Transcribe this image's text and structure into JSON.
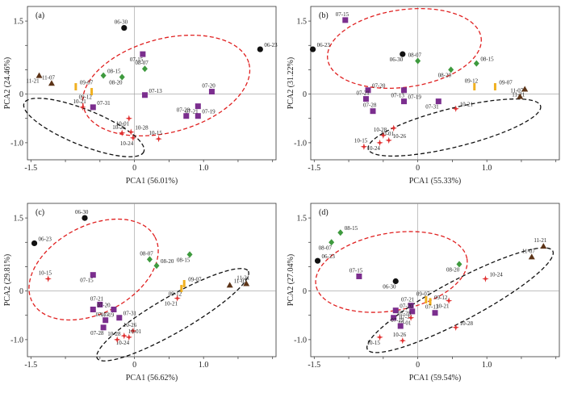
{
  "chart_data": [
    {
      "type": "scatter",
      "panel_label": "(a)",
      "xlabel": "PCA1 (56.01%)",
      "ylabel": "PCA2 (24.46%)",
      "xlim": [
        -1.55,
        2.05
      ],
      "ylim": [
        -1.35,
        1.8
      ],
      "xticks": [
        -1.5,
        -1.0,
        -0.5,
        0,
        0.5,
        1.0,
        1.5,
        2.0
      ],
      "xtick_labels": [
        "-1.5",
        "",
        "",
        "0",
        "",
        "1.0",
        "",
        ""
      ],
      "yticks": [
        -1.0,
        -0.5,
        0,
        0.5,
        1.0,
        1.5
      ],
      "ytick_labels": [
        "-1.0",
        "",
        "0",
        "",
        "",
        "1.5"
      ],
      "points": [
        {
          "label": "06-30",
          "x": -0.15,
          "y": 1.36,
          "marker": "circle",
          "color": "#111111"
        },
        {
          "label": "06-23",
          "x": 1.82,
          "y": 0.92,
          "marker": "circle",
          "color": "#111111"
        },
        {
          "label": "07-15",
          "x": 0.12,
          "y": 0.82,
          "marker": "square",
          "color": "#7b2e8e"
        },
        {
          "label": "08-07",
          "x": 0.15,
          "y": 0.52,
          "marker": "diamond",
          "color": "#3e9a3e"
        },
        {
          "label": "08-15",
          "x": -0.45,
          "y": 0.38,
          "marker": "diamond",
          "color": "#3e9a3e"
        },
        {
          "label": "08-20",
          "x": -0.18,
          "y": 0.35,
          "marker": "diamond",
          "color": "#3e9a3e"
        },
        {
          "label": "07-20",
          "x": 1.12,
          "y": 0.05,
          "marker": "square",
          "color": "#7b2e8e"
        },
        {
          "label": "07-13",
          "x": 0.15,
          "y": -0.02,
          "marker": "square",
          "color": "#7b2e8e"
        },
        {
          "label": "07-21",
          "x": 0.92,
          "y": -0.25,
          "marker": "square",
          "color": "#7b2e8e"
        },
        {
          "label": "07-28",
          "x": 0.75,
          "y": -0.45,
          "marker": "square",
          "color": "#7b2e8e"
        },
        {
          "label": "07-19",
          "x": 0.92,
          "y": -0.45,
          "marker": "square",
          "color": "#7b2e8e"
        },
        {
          "label": "11-21",
          "x": -1.38,
          "y": 0.38,
          "marker": "triangle",
          "color": "#5c3317"
        },
        {
          "label": "11-07",
          "x": -1.2,
          "y": 0.22,
          "marker": "triangle",
          "color": "#5c3317"
        },
        {
          "label": "09-07",
          "x": -0.85,
          "y": 0.15,
          "marker": "bar",
          "color": "#f0b020"
        },
        {
          "label": "09-12",
          "x": -0.62,
          "y": 0.05,
          "marker": "bar",
          "color": "#f0b020"
        },
        {
          "label": "10-21",
          "x": -0.75,
          "y": -0.27,
          "marker": "star",
          "color": "#e03030"
        },
        {
          "label": "07-31",
          "x": -0.6,
          "y": -0.27,
          "marker": "square",
          "color": "#7b2e8e"
        },
        {
          "label": "10-01",
          "x": -0.08,
          "y": -0.5,
          "marker": "star",
          "color": "#e03030"
        },
        {
          "label": "10-26",
          "x": -0.18,
          "y": -0.8,
          "marker": "star",
          "color": "#e03030"
        },
        {
          "label": "10-28",
          "x": -0.05,
          "y": -0.78,
          "marker": "star",
          "color": "#e03030"
        },
        {
          "label": "10-24",
          "x": -0.02,
          "y": -0.9,
          "marker": "star",
          "color": "#e03030"
        },
        {
          "label": "10-15",
          "x": 0.35,
          "y": -0.92,
          "marker": "star",
          "color": "#e03030"
        }
      ]
    },
    {
      "type": "scatter",
      "panel_label": "(b)",
      "xlabel": "PCA1 (55.33%)",
      "ylabel": "PCA2 (31.22%)",
      "xlim": [
        -1.55,
        2.05
      ],
      "ylim": [
        -1.35,
        1.8
      ],
      "xticks": [
        -1.5,
        -1.0,
        -0.5,
        0,
        0.5,
        1.0,
        1.5,
        2.0
      ],
      "xtick_labels": [
        "-1.5",
        "",
        "",
        "0",
        "",
        "1.0",
        "",
        ""
      ],
      "yticks": [
        -1.0,
        -0.5,
        0,
        0.5,
        1.0,
        1.5
      ],
      "ytick_labels": [
        "-1.0",
        "",
        "0",
        "",
        "",
        "1.5"
      ],
      "points": [
        {
          "label": "07-15",
          "x": -1.05,
          "y": 1.52,
          "marker": "square",
          "color": "#7b2e8e"
        },
        {
          "label": "06-23",
          "x": -1.52,
          "y": 0.92,
          "marker": "circle",
          "color": "#111111"
        },
        {
          "label": "06-30",
          "x": -0.22,
          "y": 0.82,
          "marker": "circle",
          "color": "#111111"
        },
        {
          "label": "08-07",
          "x": 0.0,
          "y": 0.68,
          "marker": "diamond",
          "color": "#3e9a3e"
        },
        {
          "label": "08-15",
          "x": 0.85,
          "y": 0.63,
          "marker": "diamond",
          "color": "#3e9a3e"
        },
        {
          "label": "08-20",
          "x": 0.48,
          "y": 0.5,
          "marker": "diamond",
          "color": "#3e9a3e"
        },
        {
          "label": "09-12",
          "x": 0.82,
          "y": 0.15,
          "marker": "bar",
          "color": "#f0b020"
        },
        {
          "label": "09-07",
          "x": 1.12,
          "y": 0.15,
          "marker": "bar",
          "color": "#f0b020"
        },
        {
          "label": "11-21",
          "x": 1.55,
          "y": 0.1,
          "marker": "triangle",
          "color": "#5c3317"
        },
        {
          "label": "11-07",
          "x": 1.48,
          "y": -0.05,
          "marker": "triangle",
          "color": "#5c3317"
        },
        {
          "label": "07-20",
          "x": -0.72,
          "y": 0.08,
          "marker": "square",
          "color": "#7b2e8e"
        },
        {
          "label": "07-13",
          "x": -0.2,
          "y": 0.08,
          "marker": "square",
          "color": "#7b2e8e"
        },
        {
          "label": "07-21",
          "x": -0.75,
          "y": -0.1,
          "marker": "square",
          "color": "#7b2e8e"
        },
        {
          "label": "07-19",
          "x": -0.2,
          "y": -0.15,
          "marker": "square",
          "color": "#7b2e8e"
        },
        {
          "label": "07-31",
          "x": 0.3,
          "y": -0.15,
          "marker": "square",
          "color": "#7b2e8e"
        },
        {
          "label": "07-28",
          "x": -0.65,
          "y": -0.35,
          "marker": "square",
          "color": "#7b2e8e"
        },
        {
          "label": "10-21",
          "x": 0.55,
          "y": -0.3,
          "marker": "star",
          "color": "#e03030"
        },
        {
          "label": "10-01",
          "x": -0.35,
          "y": -0.7,
          "marker": "star",
          "color": "#e03030"
        },
        {
          "label": "10-28",
          "x": -0.5,
          "y": -0.85,
          "marker": "star",
          "color": "#e03030"
        },
        {
          "label": "10-26",
          "x": -0.42,
          "y": -0.95,
          "marker": "star",
          "color": "#e03030"
        },
        {
          "label": "10-24",
          "x": -0.55,
          "y": -1.0,
          "marker": "star",
          "color": "#e03030"
        },
        {
          "label": "10-15",
          "x": -0.78,
          "y": -1.08,
          "marker": "star",
          "color": "#e03030"
        }
      ]
    },
    {
      "type": "scatter",
      "panel_label": "(c)",
      "xlabel": "PCA1 (56.62%)",
      "ylabel": "PCA2 (29.81%)",
      "xlim": [
        -1.55,
        2.05
      ],
      "ylim": [
        -1.35,
        1.8
      ],
      "xticks": [
        -1.5,
        -1.0,
        -0.5,
        0,
        0.5,
        1.0,
        1.5,
        2.0
      ],
      "xtick_labels": [
        "-1.5",
        "",
        "",
        "0",
        "",
        "1.0",
        "",
        ""
      ],
      "yticks": [
        -1.0,
        -0.5,
        0,
        0.5,
        1.0,
        1.5
      ],
      "ytick_labels": [
        "-1.0",
        "",
        "0",
        "",
        "",
        "1.5"
      ],
      "points": [
        {
          "label": "06-30",
          "x": -0.72,
          "y": 1.5,
          "marker": "circle",
          "color": "#111111"
        },
        {
          "label": "06-23",
          "x": -1.45,
          "y": 0.98,
          "marker": "circle",
          "color": "#111111"
        },
        {
          "label": "08-15",
          "x": 0.8,
          "y": 0.75,
          "marker": "diamond",
          "color": "#3e9a3e"
        },
        {
          "label": "08-07",
          "x": 0.22,
          "y": 0.65,
          "marker": "diamond",
          "color": "#3e9a3e"
        },
        {
          "label": "08-20",
          "x": 0.32,
          "y": 0.52,
          "marker": "diamond",
          "color": "#3e9a3e"
        },
        {
          "label": "07-15",
          "x": -0.6,
          "y": 0.33,
          "marker": "square",
          "color": "#7b2e8e"
        },
        {
          "label": "10-15",
          "x": -1.25,
          "y": 0.25,
          "marker": "star",
          "color": "#e03030"
        },
        {
          "label": "09-07",
          "x": 0.72,
          "y": 0.15,
          "marker": "bar",
          "color": "#f0b020"
        },
        {
          "label": "09-12",
          "x": 0.68,
          "y": 0.05,
          "marker": "bar",
          "color": "#f0b020"
        },
        {
          "label": "11-21",
          "x": 1.62,
          "y": 0.15,
          "marker": "triangle",
          "color": "#5c3317"
        },
        {
          "label": "11-07",
          "x": 1.38,
          "y": 0.12,
          "marker": "triangle",
          "color": "#5c3317"
        },
        {
          "label": "10-21",
          "x": 0.62,
          "y": -0.15,
          "marker": "star",
          "color": "#e03030"
        },
        {
          "label": "07-21",
          "x": -0.5,
          "y": -0.28,
          "marker": "square",
          "color": "#7b2e8e"
        },
        {
          "label": "07-20",
          "x": -0.6,
          "y": -0.38,
          "marker": "square",
          "color": "#7b2e8e"
        },
        {
          "label": "07-19",
          "x": -0.3,
          "y": -0.38,
          "marker": "square",
          "color": "#7b2e8e"
        },
        {
          "label": "07-13",
          "x": -0.42,
          "y": -0.6,
          "marker": "square",
          "color": "#7b2e8e"
        },
        {
          "label": "07-31",
          "x": -0.22,
          "y": -0.55,
          "marker": "square",
          "color": "#7b2e8e"
        },
        {
          "label": "07-28",
          "x": -0.45,
          "y": -0.75,
          "marker": "square",
          "color": "#7b2e8e"
        },
        {
          "label": "10-26",
          "x": -0.02,
          "y": -0.82,
          "marker": "star",
          "color": "#e03030"
        },
        {
          "label": "10-01",
          "x": -0.15,
          "y": -0.92,
          "marker": "star",
          "color": "#e03030"
        },
        {
          "label": "10-24",
          "x": -0.08,
          "y": -0.95,
          "marker": "star",
          "color": "#e03030"
        },
        {
          "label": "10-28",
          "x": -0.25,
          "y": -1.0,
          "marker": "star",
          "color": "#e03030"
        }
      ]
    },
    {
      "type": "scatter",
      "panel_label": "(d)",
      "xlabel": "PCA1 (59.54%)",
      "ylabel": "PCA2 (27.04%)",
      "xlim": [
        -1.55,
        2.05
      ],
      "ylim": [
        -1.35,
        1.8
      ],
      "xticks": [
        -1.5,
        -1.0,
        -0.5,
        0,
        0.5,
        1.0,
        1.5,
        2.0
      ],
      "xtick_labels": [
        "-1.5",
        "",
        "",
        "0",
        "",
        "1.0",
        "",
        ""
      ],
      "yticks": [
        -1.0,
        -0.5,
        0,
        0.5,
        1.0,
        1.5
      ],
      "ytick_labels": [
        "-1.0",
        "",
        "0",
        "",
        "",
        "1.5"
      ],
      "points": [
        {
          "label": "11-21",
          "x": 1.82,
          "y": 0.92,
          "marker": "triangle",
          "color": "#5c3317"
        },
        {
          "label": "08-15",
          "x": -1.12,
          "y": 1.2,
          "marker": "diamond",
          "color": "#3e9a3e"
        },
        {
          "label": "08-07",
          "x": -1.25,
          "y": 1.0,
          "marker": "diamond",
          "color": "#3e9a3e"
        },
        {
          "label": "11-07",
          "x": 1.65,
          "y": 0.7,
          "marker": "triangle",
          "color": "#5c3317"
        },
        {
          "label": "06-23",
          "x": -1.45,
          "y": 0.62,
          "marker": "circle",
          "color": "#111111"
        },
        {
          "label": "08-20",
          "x": 0.6,
          "y": 0.55,
          "marker": "diamond",
          "color": "#3e9a3e"
        },
        {
          "label": "07-15",
          "x": -0.85,
          "y": 0.3,
          "marker": "square",
          "color": "#7b2e8e"
        },
        {
          "label": "10-24",
          "x": 0.98,
          "y": 0.25,
          "marker": "star",
          "color": "#e03030"
        },
        {
          "label": "06-30",
          "x": -0.32,
          "y": 0.2,
          "marker": "circle",
          "color": "#111111"
        },
        {
          "label": "09-07",
          "x": 0.12,
          "y": -0.18,
          "marker": "bar",
          "color": "#f0b020"
        },
        {
          "label": "09-12",
          "x": 0.18,
          "y": -0.22,
          "marker": "bar",
          "color": "#f0b020"
        },
        {
          "label": "10-21",
          "x": 0.45,
          "y": -0.2,
          "marker": "star",
          "color": "#e03030"
        },
        {
          "label": "07-21",
          "x": -0.1,
          "y": -0.3,
          "marker": "square",
          "color": "#7b2e8e"
        },
        {
          "label": "07-20",
          "x": -0.32,
          "y": -0.4,
          "marker": "square",
          "color": "#7b2e8e"
        },
        {
          "label": "07-31",
          "x": -0.08,
          "y": -0.42,
          "marker": "square",
          "color": "#7b2e8e"
        },
        {
          "label": "07-13",
          "x": 0.25,
          "y": -0.45,
          "marker": "square",
          "color": "#7b2e8e"
        },
        {
          "label": "07-28",
          "x": -0.35,
          "y": -0.55,
          "marker": "square",
          "color": "#7b2e8e"
        },
        {
          "label": "10-01",
          "x": -0.1,
          "y": -0.55,
          "marker": "star",
          "color": "#e03030"
        },
        {
          "label": "07-19",
          "x": -0.25,
          "y": -0.72,
          "marker": "square",
          "color": "#7b2e8e"
        },
        {
          "label": "10-28",
          "x": 0.55,
          "y": -0.75,
          "marker": "star",
          "color": "#e03030"
        },
        {
          "label": "10-15",
          "x": -0.55,
          "y": -0.95,
          "marker": "star",
          "color": "#e03030"
        },
        {
          "label": "10-26",
          "x": -0.22,
          "y": -1.02,
          "marker": "star",
          "color": "#e03030"
        }
      ]
    }
  ]
}
